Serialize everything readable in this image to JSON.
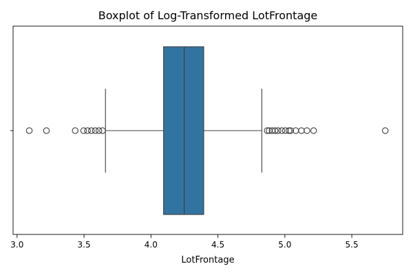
{
  "chart_data": {
    "type": "boxplot",
    "title": "Boxplot of Log-Transformed LotFrontage",
    "xlabel": "LotFrontage",
    "ylabel": "",
    "orientation": "horizontal",
    "xlim": [
      2.97,
      5.88
    ],
    "xticks": [
      3.0,
      3.5,
      4.0,
      4.5,
      5.0,
      5.5
    ],
    "xtick_labels": [
      "3.0",
      "3.5",
      "4.0",
      "4.5",
      "5.0",
      "5.5"
    ],
    "grid": false,
    "legend": "none",
    "box_color": "#3274a1",
    "line_color": "#3d3d3d",
    "stats": {
      "whisker_low": 3.66,
      "q1": 4.094,
      "median": 4.248,
      "q3": 4.394,
      "whisker_high": 4.828
    },
    "outliers_low": [
      3.091,
      3.219,
      3.434,
      3.497,
      3.526,
      3.555,
      3.584,
      3.611,
      3.638
    ],
    "outliers_high": [
      4.868,
      4.883,
      4.905,
      4.927,
      4.949,
      4.977,
      5.004,
      5.03,
      5.043,
      5.081,
      5.124,
      5.165,
      5.215,
      5.75
    ]
  }
}
